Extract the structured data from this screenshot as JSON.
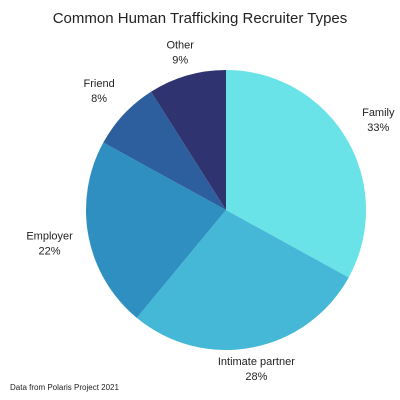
{
  "chart_data": {
    "type": "pie",
    "title": "Common Human Trafficking Recruiter Types",
    "categories": [
      "Family",
      "Intimate partner",
      "Employer",
      "Friend",
      "Other"
    ],
    "values": [
      33,
      28,
      22,
      8,
      9
    ],
    "value_labels": [
      "33%",
      "28%",
      "22%",
      "8%",
      "9%"
    ],
    "colors": [
      "#6ae3e8",
      "#45b8d8",
      "#2e8fc0",
      "#2d5f9e",
      "#2f3470"
    ],
    "source": "Data from Polaris Project 2021"
  }
}
